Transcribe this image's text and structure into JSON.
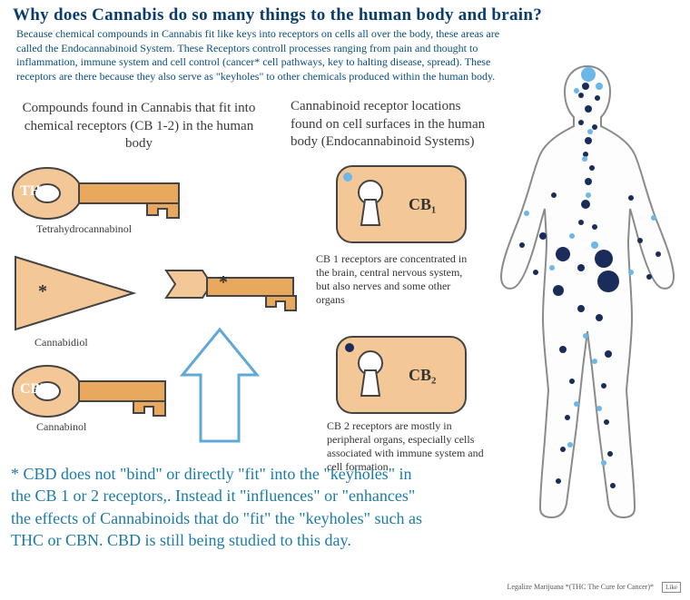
{
  "title": "Why does Cannabis do so many things to the human body and brain?",
  "intro": "Because chemical compounds in Cannabis fit like keys into receptors on cells all over the body, these areas are called the Endocannabinoid System. These Receptors controll processes ranging from pain and thought to inflammation, immune system and cell control (cancer* cell pathways, key to halting disease, spread). These receptors are there because they also serve as \"keyholes\" to other chemicals produced within the human body.",
  "left_header": "Compounds found in Cannabis that fit into chemical receptors (CB 1-2) in the human body",
  "right_header": "Cannabinoid receptor locations found on cell surfaces in the human body (Endocannabinoid Systems)",
  "keys": {
    "thc": {
      "big": "THC",
      "sub": "Tetrahydrocannabinol"
    },
    "cbd": {
      "star": "*",
      "sub": "Cannabidiol"
    },
    "cbn": {
      "big": "CBN",
      "sub": "Cannabinol"
    }
  },
  "locks": {
    "cb1": {
      "label": "CB₁",
      "desc": "CB 1 receptors are concentrated in the brain, central nervous system, but also nerves and some other organs"
    },
    "cb2": {
      "label": "CB₂",
      "desc": "CB 2 receptors are mostly in peripheral organs, especially cells associated with immune system and cell formation"
    }
  },
  "bottom_note": "* CBD does not \"bind\" or directly \"fit\" into the \"keyholes\" in the CB 1 or 2 receptors,. Instead it \"influences\" or \"enhances\" the effects of Cannabinoids that do \"fit\" the \"keyholes\" such as THC or CBN. CBD is still being studied to this day.",
  "footer": "Legalize Marijuana *(THC The Cure for Cancer)*",
  "credit": "Like",
  "colors": {
    "title": "#0a3d6b",
    "intro": "#0a4d7a",
    "key_fill": "#f4c896",
    "key_stroke": "#444444",
    "rod_fill": "#e8a95f",
    "bottom_text": "#1a7ba8",
    "dot_dark": "#1a2d5a",
    "dot_light": "#6bb8e8",
    "body_outline": "#8a8a8a"
  },
  "body_diagram": {
    "outline_width": 2,
    "dots_dark": [
      [
        645,
        95,
        4
      ],
      [
        640,
        105,
        3
      ],
      [
        658,
        108,
        3
      ],
      [
        648,
        120,
        4
      ],
      [
        640,
        135,
        3
      ],
      [
        655,
        140,
        3
      ],
      [
        648,
        155,
        4
      ],
      [
        645,
        170,
        3
      ],
      [
        652,
        185,
        3
      ],
      [
        648,
        200,
        4
      ],
      [
        610,
        215,
        3
      ],
      [
        695,
        218,
        3
      ],
      [
        645,
        225,
        5
      ],
      [
        640,
        245,
        3
      ],
      [
        655,
        250,
        3
      ],
      [
        598,
        260,
        4
      ],
      [
        705,
        265,
        3
      ],
      [
        620,
        280,
        8
      ],
      [
        665,
        285,
        10
      ],
      [
        640,
        295,
        4
      ],
      [
        670,
        310,
        12
      ],
      [
        615,
        320,
        6
      ],
      [
        640,
        340,
        4
      ],
      [
        660,
        350,
        4
      ],
      [
        590,
        300,
        3
      ],
      [
        715,
        305,
        3
      ],
      [
        620,
        385,
        4
      ],
      [
        670,
        390,
        4
      ],
      [
        630,
        420,
        3
      ],
      [
        665,
        425,
        3
      ],
      [
        625,
        460,
        3
      ],
      [
        668,
        465,
        3
      ],
      [
        620,
        495,
        3
      ],
      [
        672,
        500,
        3
      ],
      [
        615,
        530,
        3
      ],
      [
        675,
        535,
        3
      ],
      [
        575,
        270,
        3
      ],
      [
        725,
        280,
        3
      ]
    ],
    "dots_light": [
      [
        648,
        82,
        8
      ],
      [
        660,
        95,
        4
      ],
      [
        635,
        100,
        3
      ],
      [
        650,
        145,
        3
      ],
      [
        644,
        175,
        3
      ],
      [
        648,
        215,
        3
      ],
      [
        655,
        270,
        4
      ],
      [
        630,
        260,
        3
      ],
      [
        608,
        295,
        3
      ],
      [
        695,
        300,
        3
      ],
      [
        645,
        370,
        3
      ],
      [
        655,
        398,
        3
      ],
      [
        635,
        445,
        3
      ],
      [
        660,
        450,
        3
      ],
      [
        628,
        490,
        3
      ],
      [
        665,
        510,
        3
      ],
      [
        580,
        235,
        3
      ],
      [
        720,
        240,
        3
      ],
      [
        383,
        195,
        5
      ]
    ]
  }
}
